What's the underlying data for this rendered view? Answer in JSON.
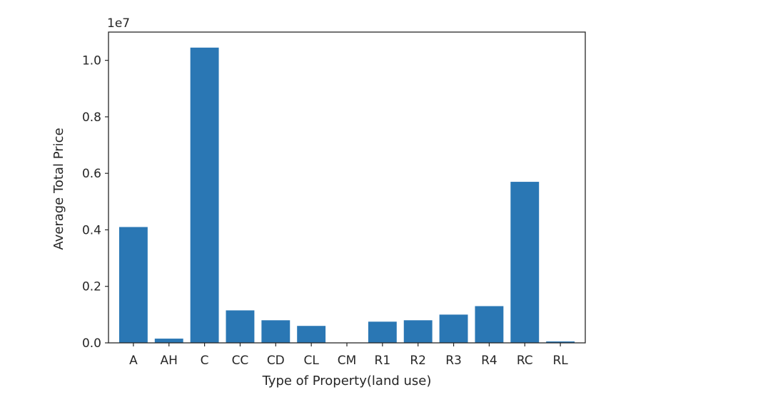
{
  "chart_data": {
    "type": "bar",
    "categories": [
      "A",
      "AH",
      "C",
      "CC",
      "CD",
      "CL",
      "CM",
      "R1",
      "R2",
      "R3",
      "R4",
      "RC",
      "RL"
    ],
    "values": [
      4100000,
      150000,
      10450000,
      1150000,
      800000,
      600000,
      0,
      750000,
      800000,
      1000000,
      1300000,
      5700000,
      50000
    ],
    "xlabel": "Type of Property(land use)",
    "ylabel": "Average Total Price",
    "offset_text": "1e7",
    "y_tick_labels": [
      "0.0",
      "0.2",
      "0.4",
      "0.6",
      "0.8",
      "1.0"
    ],
    "y_tick_values": [
      0,
      2000000,
      4000000,
      6000000,
      8000000,
      10000000
    ],
    "ylim": [
      0,
      11000000
    ],
    "bar_color": "#2a77b4",
    "grid": false,
    "legend": false
  }
}
